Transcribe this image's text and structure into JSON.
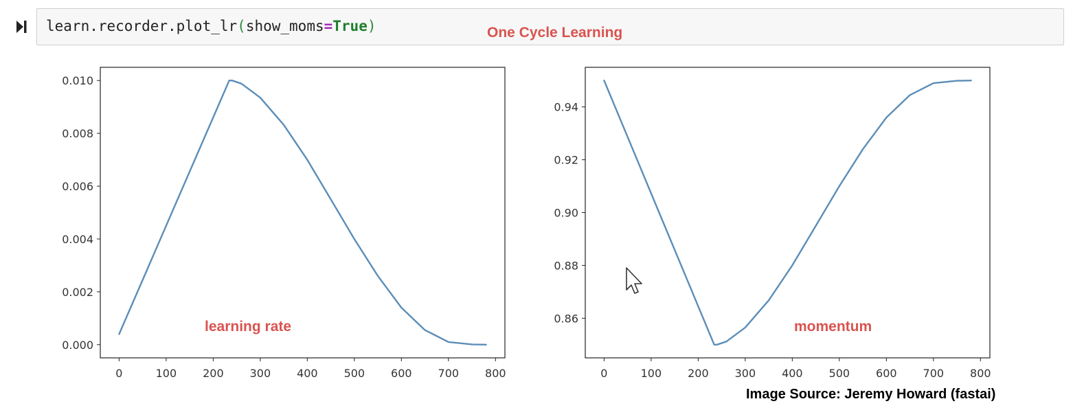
{
  "cell": {
    "code": {
      "prefix": "learn.recorder.plot_lr",
      "open_paren": "(",
      "arg_name": "show_moms",
      "operator": "=",
      "arg_value": "True",
      "close_paren": ")"
    },
    "run_icon": "run-cell-icon"
  },
  "annotations": {
    "title": "One Cycle Learning",
    "lr_label": "learning rate",
    "mom_label": "momentum",
    "source": "Image Source: Jeremy Howard (fastai)"
  },
  "colors": {
    "line": "#5b8db8",
    "annotation": "#d9534f"
  },
  "chart_data": [
    {
      "type": "line",
      "title": "",
      "xlabel": "",
      "ylabel": "",
      "xlim": [
        -40,
        820
      ],
      "ylim": [
        -0.0005,
        0.0105
      ],
      "xticks": [
        0,
        100,
        200,
        300,
        400,
        500,
        600,
        700,
        800
      ],
      "yticks": [
        0.0,
        0.002,
        0.004,
        0.006,
        0.008,
        0.01
      ],
      "ytick_labels": [
        "0.000",
        "0.002",
        "0.004",
        "0.006",
        "0.008",
        "0.010"
      ],
      "annotation": "learning rate",
      "series": [
        {
          "x": [
            0,
            58.5,
            117,
            175.5,
            234,
            240,
            260,
            300,
            350,
            400,
            450,
            500,
            550,
            600,
            650,
            700,
            750,
            780
          ],
          "y": [
            0.0004,
            0.0028,
            0.0052,
            0.0076,
            0.01,
            0.01,
            0.00988,
            0.00935,
            0.00832,
            0.007,
            0.0055,
            0.004,
            0.0026,
            0.0014,
            0.00055,
            0.0001,
            1e-05,
            0.0
          ]
        }
      ]
    },
    {
      "type": "line",
      "title": "",
      "xlabel": "",
      "ylabel": "",
      "xlim": [
        -40,
        820
      ],
      "ylim": [
        0.845,
        0.955
      ],
      "xticks": [
        0,
        100,
        200,
        300,
        400,
        500,
        600,
        700,
        800
      ],
      "yticks": [
        0.86,
        0.88,
        0.9,
        0.92,
        0.94
      ],
      "ytick_labels": [
        "0.86",
        "0.88",
        "0.90",
        "0.92",
        "0.94"
      ],
      "annotation": "momentum",
      "series": [
        {
          "x": [
            0,
            58.5,
            117,
            175.5,
            234,
            240,
            260,
            300,
            350,
            400,
            450,
            500,
            550,
            600,
            650,
            700,
            750,
            780
          ],
          "y": [
            0.95,
            0.925,
            0.9,
            0.875,
            0.85,
            0.85,
            0.8512,
            0.8565,
            0.8668,
            0.88,
            0.895,
            0.91,
            0.924,
            0.936,
            0.9445,
            0.949,
            0.9499,
            0.95
          ]
        }
      ]
    }
  ]
}
